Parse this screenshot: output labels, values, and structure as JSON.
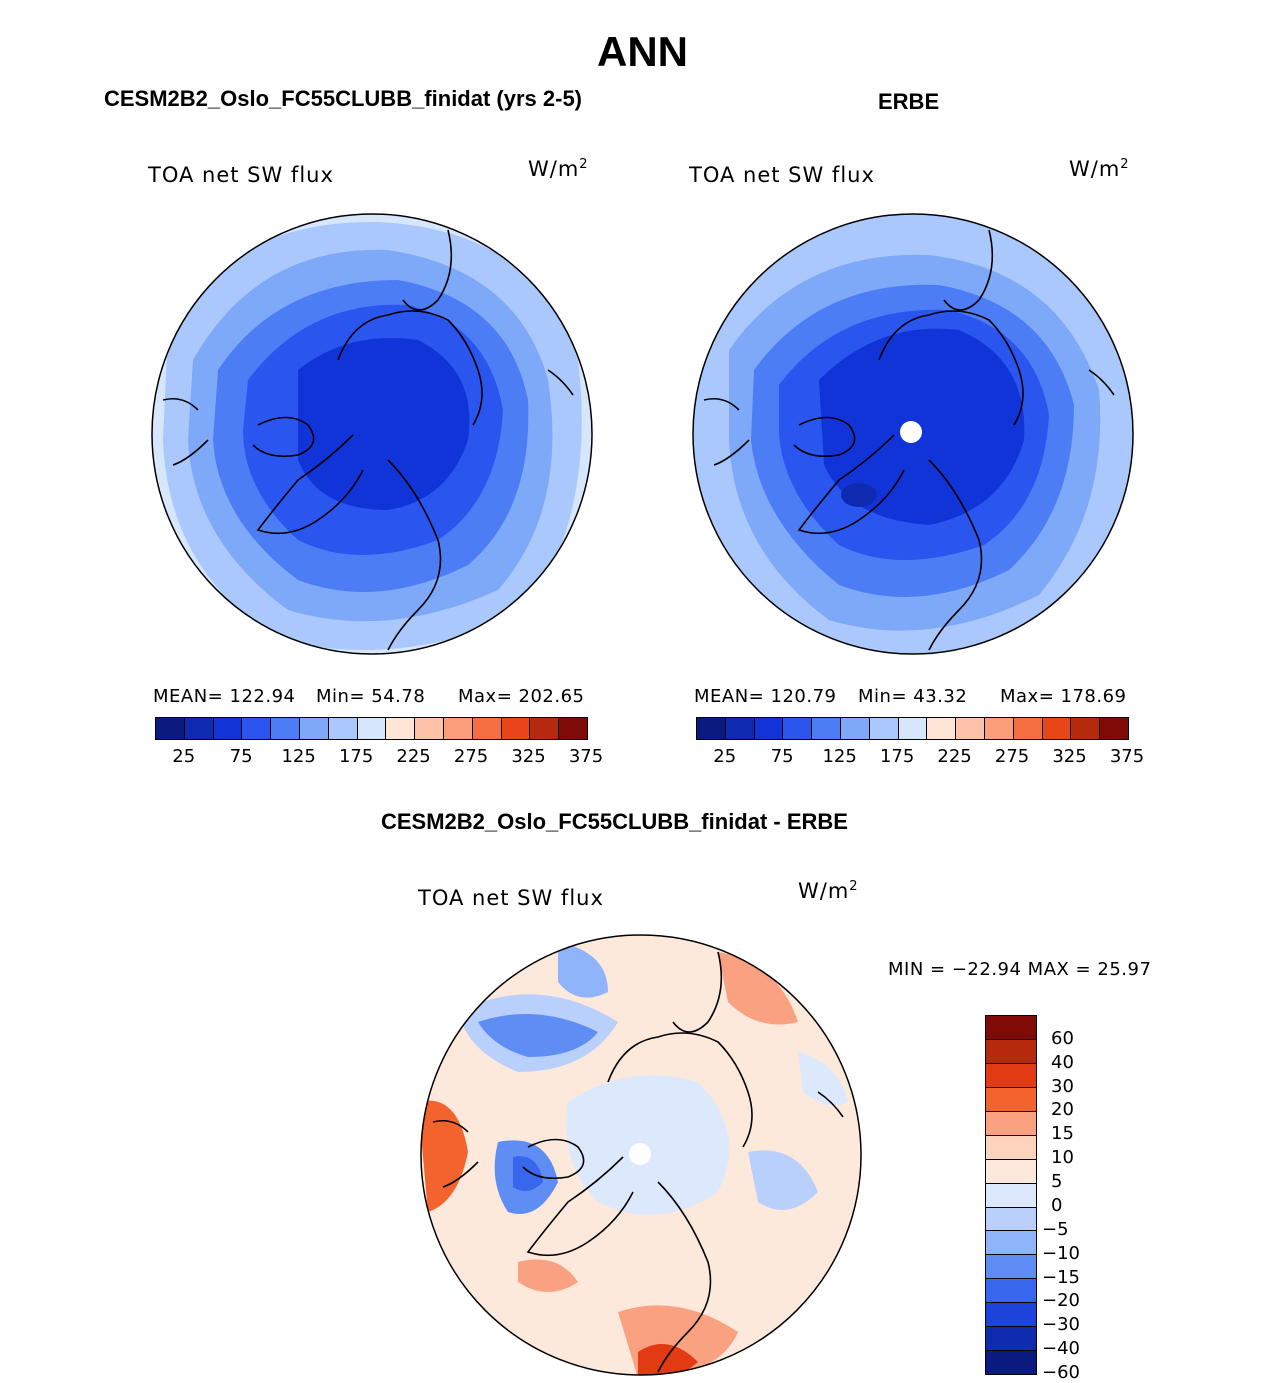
{
  "title": "ANN",
  "panels": [
    {
      "case": "CESM2B2_Oslo_FC55CLUBB_finidat (yrs 2-5)",
      "variable": "TOA net SW flux",
      "units_base": "W/m",
      "units_exp": "2",
      "stats": {
        "mean": "MEAN= 122.94",
        "min": "Min=  54.78",
        "max": "Max= 202.65"
      },
      "colorbar_ticks": [
        "25",
        "75",
        "125",
        "175",
        "225",
        "275",
        "325",
        "375"
      ]
    },
    {
      "case": "ERBE",
      "variable": "TOA net SW flux",
      "units_base": "W/m",
      "units_exp": "2",
      "stats": {
        "mean": "MEAN= 120.79",
        "min": "Min=  43.32",
        "max": "Max= 178.69"
      },
      "colorbar_ticks": [
        "25",
        "75",
        "125",
        "175",
        "225",
        "275",
        "325",
        "375"
      ]
    }
  ],
  "diff": {
    "case": "CESM2B2_Oslo_FC55CLUBB_finidat - ERBE",
    "variable": "TOA net SW flux",
    "units_base": "W/m",
    "units_exp": "2",
    "minmax": "MIN = −22.94 MAX =  25.97",
    "colorbar_ticks": [
      "60",
      "40",
      "30",
      "20",
      "15",
      "10",
      "5",
      "0",
      "−5",
      "−10",
      "−15",
      "−20",
      "−30",
      "−40",
      "−60"
    ]
  },
  "colors": {
    "abs_scale": [
      "#0a1a7e",
      "#0e2ab0",
      "#1034d8",
      "#2a55ee",
      "#4d7df5",
      "#7ea8f8",
      "#aac8fb",
      "#d6e6fd",
      "#fde6d6",
      "#fdc3a8",
      "#fb9f7b",
      "#f56f43",
      "#e84618",
      "#b52a0c",
      "#7e0b05"
    ],
    "diff_scale": [
      "#7e0b05",
      "#b52a0c",
      "#e23a12",
      "#f2632d",
      "#f9a181",
      "#fcd4bd",
      "#fde9dc",
      "#dce9fc",
      "#b8d0fb",
      "#8fb4f9",
      "#5e8df4",
      "#3866ec",
      "#1d44da",
      "#0f2bb0",
      "#0a1a7e"
    ]
  }
}
